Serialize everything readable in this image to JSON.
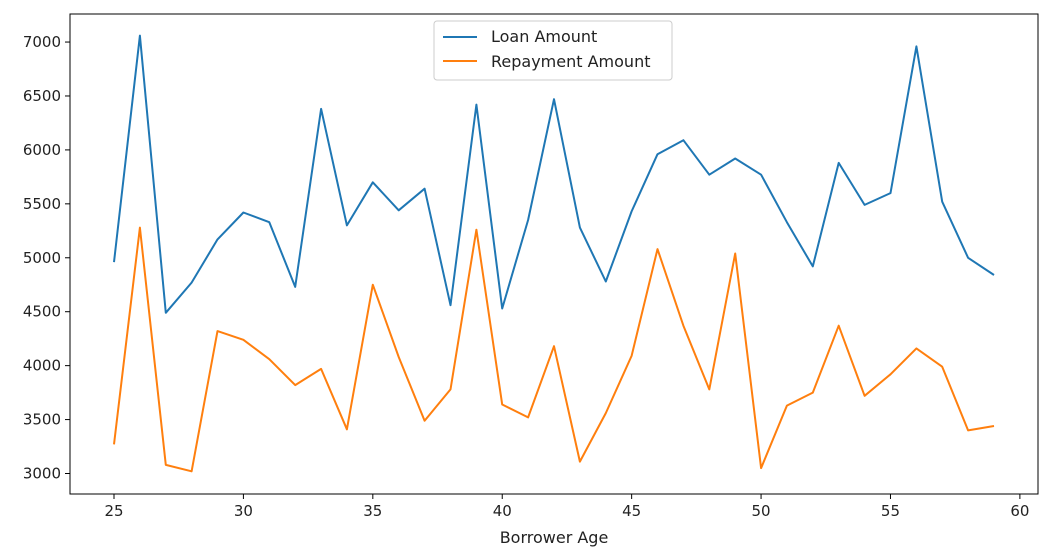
{
  "chart_data": {
    "type": "line",
    "title": "",
    "xlabel": "Borrower Age",
    "ylabel": "",
    "x": [
      25,
      26,
      27,
      28,
      29,
      30,
      31,
      32,
      33,
      34,
      35,
      36,
      37,
      38,
      39,
      40,
      41,
      42,
      43,
      44,
      45,
      46,
      47,
      48,
      49,
      50,
      51,
      52,
      53,
      54,
      55,
      56,
      57,
      58,
      59
    ],
    "series": [
      {
        "name": "Loan Amount",
        "color": "#1f77b4",
        "values": [
          4960,
          7060,
          4490,
          4770,
          5170,
          5420,
          5330,
          4730,
          6380,
          5300,
          5700,
          5440,
          5640,
          4560,
          6420,
          4530,
          5350,
          6470,
          5280,
          4780,
          5430,
          5960,
          6090,
          5770,
          5920,
          5770,
          5330,
          4920,
          5880,
          5490,
          5600,
          6960,
          5520,
          5000,
          4840
        ]
      },
      {
        "name": "Repayment Amount",
        "color": "#ff7f0e",
        "values": [
          3270,
          5280,
          3080,
          3020,
          4320,
          4240,
          4060,
          3820,
          3970,
          3410,
          4750,
          4080,
          3490,
          3780,
          5260,
          3640,
          3520,
          4180,
          3110,
          3560,
          4090,
          5080,
          4370,
          3780,
          5040,
          3050,
          3630,
          3750,
          4370,
          3720,
          3920,
          4160,
          3990,
          3400,
          3440
        ]
      }
    ],
    "xlim": [
      23.3,
      60.7
    ],
    "ylim": [
      2810,
      7260
    ],
    "xticks": [
      25,
      30,
      35,
      40,
      45,
      50,
      55,
      60
    ],
    "yticks": [
      3000,
      3500,
      4000,
      4500,
      5000,
      5500,
      6000,
      6500,
      7000
    ],
    "legend_position": "top-center",
    "grid": false
  }
}
